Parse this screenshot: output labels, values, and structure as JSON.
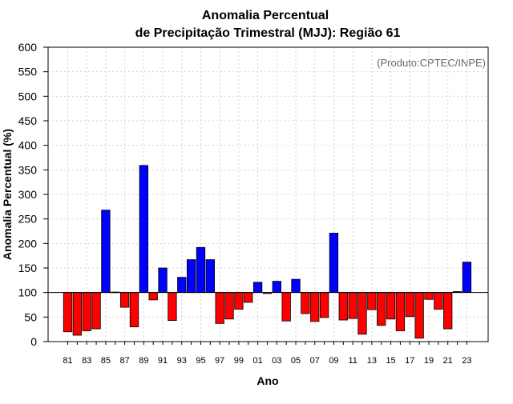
{
  "chart_data": {
    "type": "bar",
    "title_line1": "Anomalia Percentual",
    "title_line2": "de Precipitação Trimestral (MJJ): Região 61",
    "xlabel": "Ano",
    "ylabel": "Anomalia Percentual (%)",
    "watermark": "(Produto:CPTEC/INPE)",
    "baseline": 100,
    "ylim": [
      0,
      600
    ],
    "yticks": [
      0,
      50,
      100,
      150,
      200,
      250,
      300,
      350,
      400,
      450,
      500,
      550,
      600
    ],
    "categories": [
      "81",
      "82",
      "83",
      "84",
      "85",
      "86",
      "87",
      "88",
      "89",
      "90",
      "91",
      "92",
      "93",
      "94",
      "95",
      "96",
      "97",
      "98",
      "99",
      "00",
      "01",
      "02",
      "03",
      "04",
      "05",
      "06",
      "07",
      "08",
      "09",
      "10",
      "11",
      "12",
      "13",
      "14",
      "15",
      "16",
      "17",
      "18",
      "19",
      "20",
      "21",
      "22",
      "23"
    ],
    "xtick_labels": [
      "81",
      "83",
      "85",
      "87",
      "89",
      "91",
      "93",
      "95",
      "97",
      "99",
      "01",
      "03",
      "05",
      "07",
      "09",
      "11",
      "13",
      "15",
      "17",
      "19",
      "21",
      "23"
    ],
    "values": [
      20,
      13,
      22,
      26,
      268,
      101,
      70,
      30,
      359,
      85,
      150,
      43,
      131,
      167,
      192,
      167,
      37,
      46,
      66,
      80,
      121,
      98,
      123,
      42,
      127,
      57,
      41,
      49,
      221,
      44,
      47,
      15,
      65,
      33,
      46,
      22,
      51,
      7,
      86,
      66,
      26,
      102,
      162
    ],
    "colors": {
      "above": "#0000ff",
      "below": "#ff0000",
      "edge": "#000000",
      "grid": "#d3d3d3"
    }
  }
}
